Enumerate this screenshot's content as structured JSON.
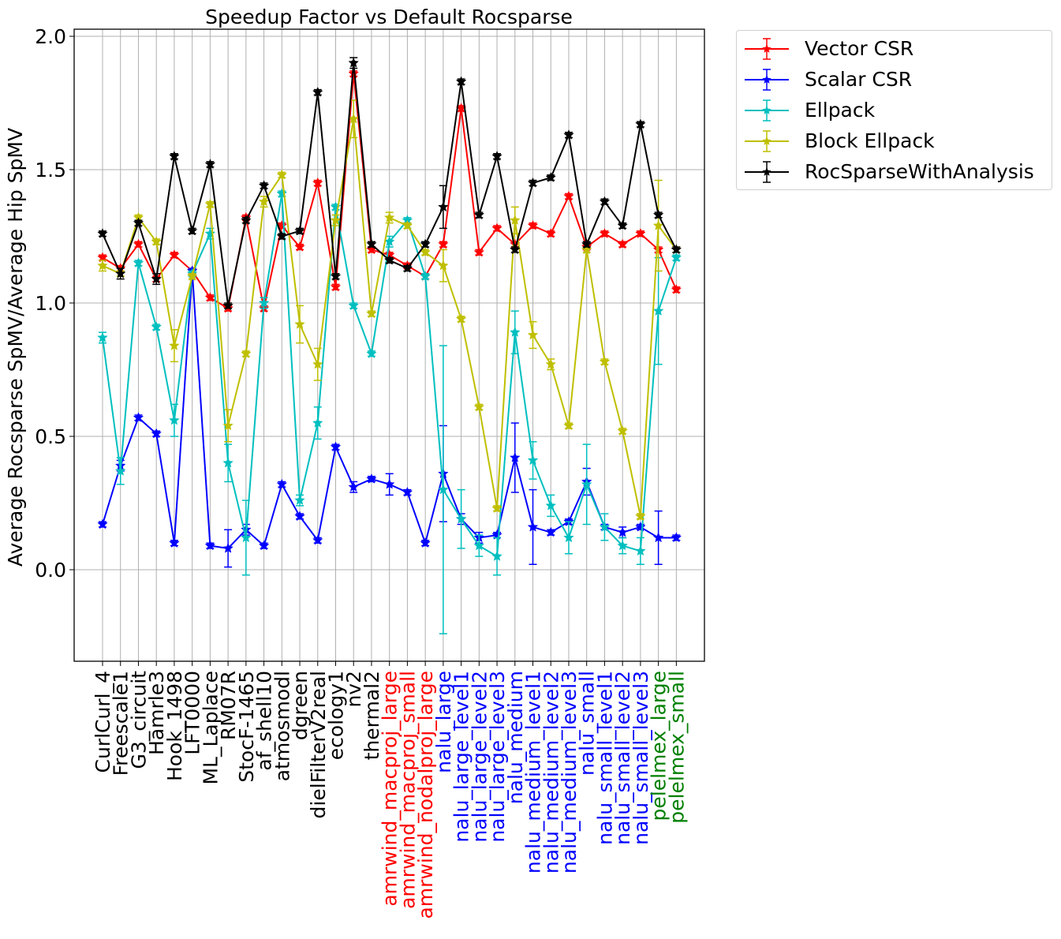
{
  "chart_data": {
    "type": "line",
    "title": "Speedup Factor vs Default Rocsparse",
    "xlabel": "",
    "ylabel": "Average Rocsparse SpMV/Average Hip SpMV",
    "ylim": [
      -0.34,
      2.02
    ],
    "yticks": [
      0.0,
      0.5,
      1.0,
      1.5,
      2.0
    ],
    "ytick_labels": [
      "0.0",
      "0.5",
      "1.0",
      "1.5",
      "2.0"
    ],
    "grid": true,
    "legend_position": "outside-top-right",
    "marker": "star",
    "error_bars": true,
    "categories": [
      "CurlCurl_4",
      "Freescale1",
      "G3_circuit",
      "Hamrle3",
      "Hook_1498",
      "LFT0000",
      "ML_Laplace",
      "RM07R",
      "StocF-1465",
      "af_shell10",
      "atmosmodl",
      "dgreen",
      "dielFilterV2real",
      "ecology1",
      "nv2",
      "thermal2",
      "amrwind_macproj_large",
      "amrwind_macproj_small",
      "amrwind_nodalproj_large",
      "nalu_large",
      "nalu_large_level1",
      "nalu_large_level2",
      "nalu_large_level3",
      "nalu_medium",
      "nalu_medium_level1",
      "nalu_medium_level2",
      "nalu_medium_level3",
      "nalu_small",
      "nalu_small_level1",
      "nalu_small_level2",
      "nalu_small_level3",
      "pelelmex_large",
      "pelelmex_small"
    ],
    "category_colors": [
      "#000000",
      "#000000",
      "#000000",
      "#000000",
      "#000000",
      "#000000",
      "#000000",
      "#000000",
      "#000000",
      "#000000",
      "#000000",
      "#000000",
      "#000000",
      "#000000",
      "#000000",
      "#000000",
      "#ff0000",
      "#ff0000",
      "#ff0000",
      "#0000ff",
      "#0000ff",
      "#0000ff",
      "#0000ff",
      "#0000ff",
      "#0000ff",
      "#0000ff",
      "#0000ff",
      "#0000ff",
      "#0000ff",
      "#0000ff",
      "#0000ff",
      "#008000",
      "#008000"
    ],
    "series": [
      {
        "name": "Vector CSR",
        "color": "#ff0000",
        "values": [
          1.17,
          1.13,
          1.22,
          1.09,
          1.18,
          1.12,
          1.02,
          0.98,
          1.32,
          0.98,
          1.29,
          1.21,
          1.45,
          1.06,
          1.86,
          1.2,
          1.18,
          1.14,
          1.1,
          1.22,
          1.73,
          1.19,
          1.28,
          1.22,
          1.29,
          1.26,
          1.4,
          1.21,
          1.26,
          1.22,
          1.26,
          1.2,
          1.05
        ],
        "errors": [
          0.01,
          0.01,
          0.01,
          0.01,
          0.01,
          0.01,
          0.01,
          0.01,
          0.01,
          0.01,
          0.01,
          0.01,
          0.01,
          0.01,
          0.01,
          0.01,
          0.01,
          0.01,
          0.01,
          0.01,
          0.01,
          0.01,
          0.01,
          0.01,
          0.01,
          0.01,
          0.01,
          0.01,
          0.01,
          0.01,
          0.01,
          0.01,
          0.01
        ]
      },
      {
        "name": "Scalar CSR",
        "color": "#0000ff",
        "values": [
          0.17,
          0.39,
          0.57,
          0.51,
          0.1,
          1.12,
          0.09,
          0.08,
          0.15,
          0.09,
          0.32,
          0.2,
          0.11,
          0.46,
          0.31,
          0.34,
          0.32,
          0.29,
          0.1,
          0.36,
          0.19,
          0.12,
          0.13,
          0.42,
          0.16,
          0.14,
          0.18,
          0.33,
          0.16,
          0.14,
          0.16,
          0.12,
          0.12
        ],
        "errors": [
          0.01,
          0.02,
          0.01,
          0.01,
          0.01,
          0.01,
          0.01,
          0.07,
          0.02,
          0.01,
          0.01,
          0.01,
          0.01,
          0.01,
          0.02,
          0.01,
          0.04,
          0.01,
          0.01,
          0.18,
          0.02,
          0.02,
          0.01,
          0.13,
          0.14,
          0.01,
          0.01,
          0.05,
          0.01,
          0.02,
          0.01,
          0.1,
          0.01
        ]
      },
      {
        "name": "Ellpack",
        "color": "#00bfbf",
        "values": [
          0.87,
          0.37,
          1.15,
          0.91,
          0.56,
          1.11,
          1.26,
          0.4,
          0.12,
          1.0,
          1.41,
          0.26,
          0.55,
          1.36,
          0.99,
          0.81,
          1.23,
          1.31,
          1.1,
          0.3,
          0.19,
          0.09,
          0.05,
          0.89,
          0.41,
          0.24,
          0.12,
          0.32,
          0.16,
          0.09,
          0.07,
          0.97,
          1.17
        ],
        "errors": [
          0.02,
          0.05,
          0.01,
          0.01,
          0.06,
          0.01,
          0.02,
          0.07,
          0.14,
          0.02,
          0.01,
          0.02,
          0.06,
          0.01,
          0.01,
          0.01,
          0.02,
          0.01,
          0.01,
          0.54,
          0.11,
          0.04,
          0.07,
          0.08,
          0.07,
          0.04,
          0.06,
          0.15,
          0.05,
          0.03,
          0.05,
          0.2,
          0.01
        ]
      },
      {
        "name": "Block Ellpack",
        "color": "#bfbf00",
        "values": [
          1.14,
          1.11,
          1.32,
          1.23,
          0.84,
          1.1,
          1.37,
          0.54,
          0.81,
          1.38,
          1.48,
          0.92,
          0.77,
          1.31,
          1.69,
          0.96,
          1.32,
          1.29,
          1.19,
          1.14,
          0.94,
          0.61,
          0.23,
          1.31,
          0.88,
          0.77,
          0.54,
          1.2,
          0.78,
          0.52,
          0.2,
          1.29,
          1.2
        ],
        "errors": [
          0.02,
          0.01,
          0.01,
          0.01,
          0.06,
          0.01,
          0.01,
          0.06,
          0.01,
          0.02,
          0.01,
          0.07,
          0.06,
          0.02,
          0.07,
          0.01,
          0.02,
          0.01,
          0.01,
          0.06,
          0.01,
          0.01,
          0.01,
          0.05,
          0.05,
          0.02,
          0.01,
          0.01,
          0.01,
          0.01,
          0.01,
          0.17,
          0.01
        ]
      },
      {
        "name": "RocSparseWithAnalysis",
        "color": "#000000",
        "values": [
          1.26,
          1.11,
          1.3,
          1.09,
          1.55,
          1.27,
          1.52,
          0.99,
          1.31,
          1.44,
          1.25,
          1.27,
          1.79,
          1.1,
          1.9,
          1.22,
          1.16,
          1.13,
          1.22,
          1.36,
          1.83,
          1.33,
          1.55,
          1.2,
          1.45,
          1.47,
          1.63,
          1.22,
          1.38,
          1.29,
          1.67,
          1.33,
          1.2
        ],
        "errors": [
          0.01,
          0.02,
          0.01,
          0.02,
          0.01,
          0.01,
          0.01,
          0.01,
          0.01,
          0.01,
          0.01,
          0.01,
          0.01,
          0.01,
          0.02,
          0.01,
          0.01,
          0.01,
          0.01,
          0.08,
          0.01,
          0.01,
          0.01,
          0.01,
          0.01,
          0.01,
          0.01,
          0.01,
          0.01,
          0.01,
          0.01,
          0.01,
          0.01
        ]
      }
    ]
  }
}
